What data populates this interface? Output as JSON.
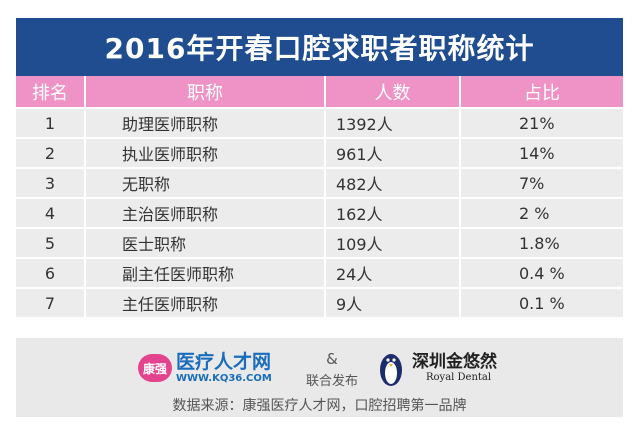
{
  "title": "2016年开春口腔求职者职称统计",
  "table": {
    "headers": [
      "排名",
      "职称",
      "人数",
      "占比"
    ],
    "rows": [
      [
        "1",
        "助理医师职称",
        "1392人",
        "21%"
      ],
      [
        "2",
        "执业医师职称",
        "961人",
        "14%"
      ],
      [
        "3",
        "无职称",
        "482人",
        "7%"
      ],
      [
        "4",
        "主治医师职称",
        "162人",
        "2 %"
      ],
      [
        "5",
        "医士职称",
        "109人",
        "1.8%"
      ],
      [
        "6",
        "副主任医师职称",
        "24人",
        "0.4 %"
      ],
      [
        "7",
        "主任医师职称",
        "9人",
        "0.1 %"
      ]
    ]
  },
  "footer": {
    "left_logo_badge": "康强",
    "left_logo_name": "医疗人才网",
    "left_logo_url": "WWW.KQ36.COM",
    "ampersand": "&",
    "joint_release": "联合发布",
    "right_logo_name": "深圳金悠然",
    "right_logo_en": "Royal Dental",
    "right_logo_icon": "penguin-icon",
    "source": "数据来源：康强医疗人才网，口腔招聘第一品牌"
  },
  "colors": {
    "title_bg": "#1f4d8f",
    "header_bg": "#ef93c6",
    "cell_bg": "#ececec",
    "footer_bg": "#e9e9e9",
    "brand_pink": "#e2458e",
    "brand_blue": "#1a6dbb"
  }
}
